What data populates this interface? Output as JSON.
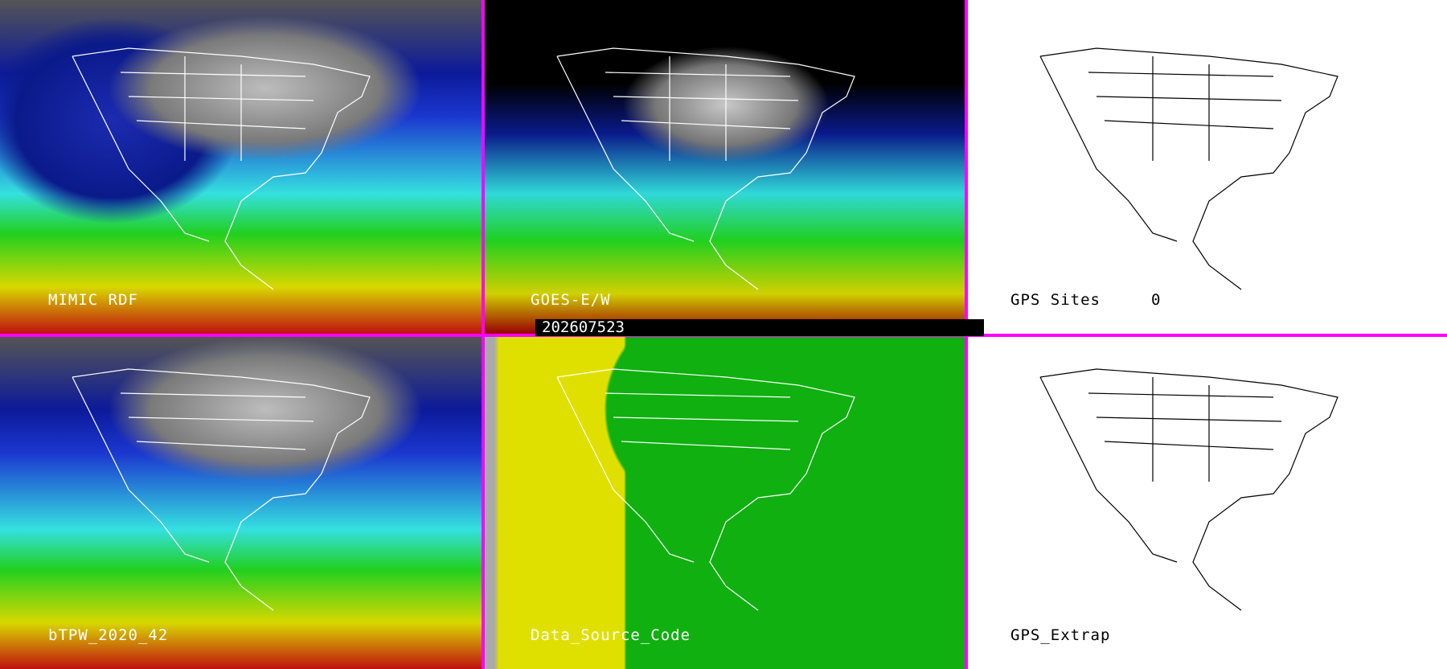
{
  "panels": [
    {
      "label": "MIMIC RDF"
    },
    {
      "label": "GOES-E/W"
    },
    {
      "label": "GPS Sites",
      "value": "0"
    },
    {
      "label": "bTPW_2020_42"
    },
    {
      "label": "Data_Source_Code"
    },
    {
      "label": "GPS_Extrap"
    }
  ],
  "timestamp": "202607523",
  "colors": {
    "divider": "#ff00ff",
    "map_outline_dark": "#ffffff",
    "map_outline_light": "#000000"
  }
}
